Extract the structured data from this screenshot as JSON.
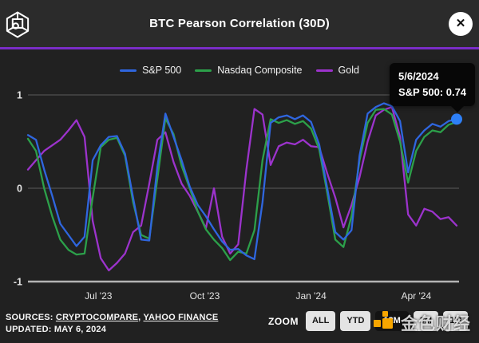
{
  "header": {
    "title": "BTC Pearson Correlation (30D)",
    "close_glyph": "✕"
  },
  "brand": {
    "divider_color": "#7a2dc8",
    "header_bg": "#2b2b2b",
    "body_bg": "#212121"
  },
  "chart_data": {
    "type": "line",
    "title": "BTC Pearson Correlation (30D)",
    "grid": "horizontal-only",
    "legend_position": "top-center",
    "ylim": [
      -1,
      1
    ],
    "y_ticks": [
      {
        "v": 1,
        "label": "1"
      },
      {
        "v": 0,
        "label": "0"
      },
      {
        "v": -1,
        "label": "-1"
      }
    ],
    "x_range": [
      "2023-05-01",
      "2024-05-06"
    ],
    "x_ticks": [
      {
        "date": "2023-07-01",
        "label": "Jul '23"
      },
      {
        "date": "2023-10-01",
        "label": "Oct '23"
      },
      {
        "date": "2024-01-01",
        "label": "Jan '24"
      },
      {
        "date": "2024-04-01",
        "label": "Apr '24"
      }
    ],
    "x_dates": [
      "2023-05-01",
      "2023-05-08",
      "2023-05-15",
      "2023-05-22",
      "2023-05-29",
      "2023-06-05",
      "2023-06-12",
      "2023-06-19",
      "2023-06-26",
      "2023-07-03",
      "2023-07-10",
      "2023-07-17",
      "2023-07-24",
      "2023-07-31",
      "2023-08-07",
      "2023-08-14",
      "2023-08-21",
      "2023-08-28",
      "2023-09-04",
      "2023-09-11",
      "2023-09-18",
      "2023-09-25",
      "2023-10-02",
      "2023-10-09",
      "2023-10-16",
      "2023-10-23",
      "2023-10-30",
      "2023-11-06",
      "2023-11-13",
      "2023-11-20",
      "2023-11-27",
      "2023-12-04",
      "2023-12-11",
      "2023-12-18",
      "2023-12-25",
      "2024-01-01",
      "2024-01-08",
      "2024-01-15",
      "2024-01-22",
      "2024-01-29",
      "2024-02-05",
      "2024-02-12",
      "2024-02-19",
      "2024-02-26",
      "2024-03-04",
      "2024-03-11",
      "2024-03-18",
      "2024-03-25",
      "2024-04-01",
      "2024-04-08",
      "2024-04-15",
      "2024-04-22",
      "2024-04-29",
      "2024-05-06"
    ],
    "series": [
      {
        "name": "S&P 500",
        "color": "#2f66df",
        "values": [
          0.57,
          0.52,
          0.2,
          -0.08,
          -0.38,
          -0.5,
          -0.62,
          -0.52,
          0.3,
          0.46,
          0.55,
          0.56,
          0.37,
          -0.1,
          -0.55,
          -0.56,
          0.23,
          0.8,
          0.55,
          0.3,
          0.02,
          -0.18,
          -0.3,
          -0.44,
          -0.57,
          -0.66,
          -0.65,
          -0.72,
          -0.76,
          -0.15,
          0.7,
          0.76,
          0.78,
          0.74,
          0.78,
          0.71,
          0.47,
          0.0,
          -0.47,
          -0.55,
          -0.45,
          0.35,
          0.8,
          0.87,
          0.91,
          0.88,
          0.72,
          0.17,
          0.52,
          0.62,
          0.69,
          0.66,
          0.72,
          0.74
        ]
      },
      {
        "name": "Nasdaq Composite",
        "color": "#2ca04a",
        "values": [
          0.53,
          0.4,
          0.0,
          -0.3,
          -0.55,
          -0.66,
          -0.71,
          -0.7,
          -0.1,
          0.44,
          0.52,
          0.54,
          0.35,
          -0.15,
          -0.5,
          -0.54,
          0.1,
          0.75,
          0.58,
          0.24,
          0.0,
          -0.25,
          -0.44,
          -0.55,
          -0.64,
          -0.77,
          -0.68,
          -0.7,
          -0.45,
          0.3,
          0.74,
          0.7,
          0.73,
          0.69,
          0.72,
          0.64,
          0.42,
          -0.05,
          -0.55,
          -0.63,
          -0.3,
          0.3,
          0.7,
          0.84,
          0.85,
          0.79,
          0.5,
          0.06,
          0.4,
          0.55,
          0.62,
          0.6,
          0.68,
          0.71
        ]
      },
      {
        "name": "Gold",
        "color": "#9c33cc",
        "values": [
          0.2,
          0.3,
          0.4,
          0.46,
          0.52,
          0.62,
          0.73,
          0.55,
          -0.35,
          -0.75,
          -0.88,
          -0.8,
          -0.7,
          -0.47,
          -0.4,
          0.05,
          0.52,
          0.6,
          0.28,
          0.05,
          -0.08,
          -0.25,
          -0.43,
          0.0,
          -0.52,
          -0.7,
          -0.6,
          0.2,
          0.85,
          0.79,
          0.25,
          0.45,
          0.49,
          0.47,
          0.52,
          0.45,
          0.44,
          0.16,
          -0.1,
          -0.42,
          -0.18,
          0.12,
          0.5,
          0.78,
          0.84,
          0.87,
          0.55,
          -0.28,
          -0.4,
          -0.22,
          -0.25,
          -0.33,
          -0.31,
          -0.4
        ]
      }
    ],
    "end_marker": {
      "series": "S&P 500",
      "date": "2024-05-06",
      "value": 0.74,
      "color": "#2e80f7"
    },
    "colors": {
      "grid": "#5c5c5c",
      "axis_line": "#b3b3b3",
      "tick_label": "#e3e3e3"
    }
  },
  "tooltip": {
    "date": "5/6/2024",
    "line": "S&P 500: 0.74"
  },
  "footer": {
    "sources_prefix": "SOURCES: ",
    "source1": "CRYPTOCOMPARE",
    "separator": ", ",
    "source2": "YAHOO FINANCE",
    "updated": "UPDATED: MAY 6, 2024"
  },
  "zoom_controls": {
    "label": "ZOOM",
    "buttons": [
      {
        "label": "ALL",
        "selected": false
      },
      {
        "label": "YTD",
        "selected": false
      },
      {
        "label": "12M",
        "selected": true
      },
      {
        "label": "3M",
        "selected": false
      },
      {
        "label": "1M",
        "selected": false
      }
    ]
  },
  "watermark": {
    "text": "金色财经",
    "logo_color": "#f7a600"
  }
}
